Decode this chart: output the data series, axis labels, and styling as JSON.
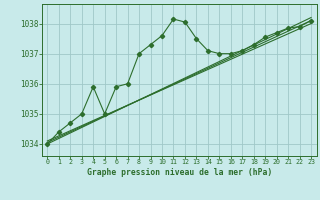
{
  "background_color": "#c8eaea",
  "grid_color": "#a0c8c8",
  "line_color": "#2d6e2d",
  "title": "Graphe pression niveau de la mer (hPa)",
  "xlim": [
    -0.5,
    23.5
  ],
  "ylim": [
    1033.6,
    1038.65
  ],
  "yticks": [
    1034,
    1035,
    1036,
    1037,
    1038
  ],
  "xticks": [
    0,
    1,
    2,
    3,
    4,
    5,
    6,
    7,
    8,
    9,
    10,
    11,
    12,
    13,
    14,
    15,
    16,
    17,
    18,
    19,
    20,
    21,
    22,
    23
  ],
  "series": {
    "main": {
      "x": [
        0,
        1,
        2,
        3,
        4,
        5,
        6,
        7,
        8,
        9,
        10,
        11,
        12,
        13,
        14,
        15,
        16,
        17,
        18,
        19,
        20,
        21,
        22,
        23
      ],
      "y": [
        1034.0,
        1034.4,
        1034.7,
        1035.0,
        1035.9,
        1035.0,
        1035.9,
        1036.0,
        1037.0,
        1037.3,
        1037.6,
        1038.15,
        1038.05,
        1037.5,
        1037.1,
        1037.0,
        1037.0,
        1037.1,
        1037.3,
        1037.55,
        1037.7,
        1037.85,
        1037.9,
        1038.1
      ]
    },
    "trend1": {
      "x": [
        0,
        23
      ],
      "y": [
        1034.05,
        1038.1
      ]
    },
    "trend2": {
      "x": [
        0,
        23
      ],
      "y": [
        1034.1,
        1038.0
      ]
    },
    "trend3": {
      "x": [
        0,
        23
      ],
      "y": [
        1034.0,
        1038.2
      ]
    }
  },
  "figsize": [
    3.2,
    2.0
  ],
  "dpi": 100
}
